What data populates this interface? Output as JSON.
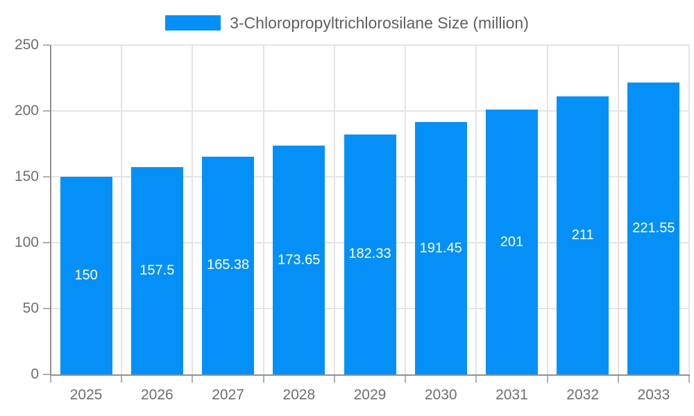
{
  "chart_data": {
    "type": "bar",
    "title": "3-Chloropropyltrichlorosilane Size (million)",
    "categories": [
      "2025",
      "2026",
      "2027",
      "2028",
      "2029",
      "2030",
      "2031",
      "2032",
      "2033"
    ],
    "values": [
      150,
      157.5,
      165.38,
      173.65,
      182.33,
      191.45,
      201,
      211,
      221.55
    ],
    "value_labels": [
      "150",
      "157.5",
      "165.38",
      "173.65",
      "182.33",
      "191.45",
      "201",
      "211",
      "221.55"
    ],
    "xlabel": "",
    "ylabel": "",
    "ylim": [
      0,
      250
    ],
    "yticks": [
      0,
      50,
      100,
      150,
      200,
      250
    ],
    "grid": true,
    "legend_position": "top",
    "colors": {
      "bar": "#0590f8",
      "grid": "#e4e4e4",
      "axis": "#909090",
      "tick": "#b0b0b0",
      "label_color": "#6e6e6e",
      "title_color": "#5f5f5f",
      "value_label": "#ffffff",
      "background": "#ffffff"
    }
  }
}
